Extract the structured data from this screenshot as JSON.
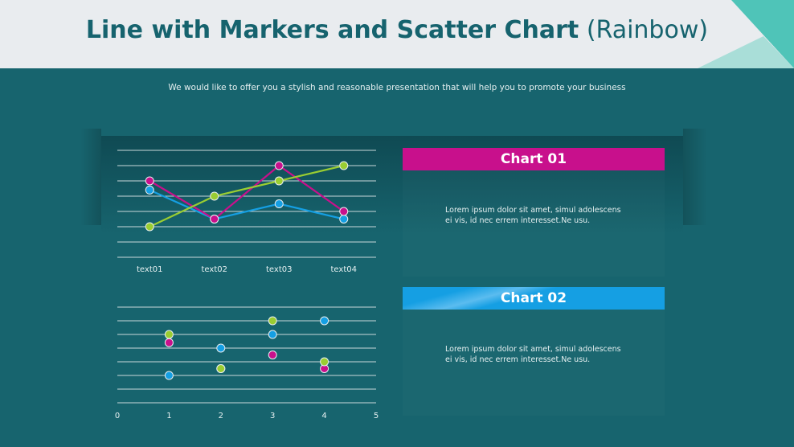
{
  "header": {
    "title_bold": "Line with Markers and Scatter Chart",
    "title_light": "(Rainbow)"
  },
  "subtitle": "We would like to offer you a stylish and reasonable presentation that will help you to promote your business",
  "colors": {
    "accent_teal": "#4fc4b8",
    "light_teal": "#a9ded8",
    "magenta": "#c8108c",
    "blue": "#159fe3",
    "green": "#9acd32",
    "background": "#17646e"
  },
  "cards": [
    {
      "title": "Chart 01",
      "text": "Lorem ipsum dolor sit amet, simul adolescens ei vis, id nec errem interesset.Ne usu.",
      "color": "#c8108c"
    },
    {
      "title": "Chart 02",
      "text": "Lorem ipsum dolor sit amet, simul adolescens ei vis, id nec errem interesset.Ne usu.",
      "color": "#159fe3"
    }
  ],
  "chart_data": [
    {
      "type": "line",
      "categories": [
        "text01",
        "text02",
        "text03",
        "text04"
      ],
      "ylim": [
        0,
        7
      ],
      "grid": true,
      "series": [
        {
          "color": "#159fe3",
          "values": [
            4.4,
            2.5,
            3.5,
            2.5
          ]
        },
        {
          "color": "#c8108c",
          "values": [
            5,
            2.5,
            6,
            3
          ]
        },
        {
          "color": "#9acd32",
          "values": [
            2,
            4,
            5,
            6
          ]
        }
      ]
    },
    {
      "type": "scatter",
      "xlim": [
        0,
        5
      ],
      "ylim": [
        0,
        7
      ],
      "xticks": [
        "0",
        "1",
        "2",
        "3",
        "4",
        "5"
      ],
      "grid": true,
      "series": [
        {
          "color": "#159fe3",
          "points": [
            [
              1,
              2
            ],
            [
              2,
              4
            ],
            [
              3,
              5
            ],
            [
              4,
              6
            ]
          ]
        },
        {
          "color": "#c8108c",
          "points": [
            [
              1,
              4.4
            ],
            [
              2,
              2.5
            ],
            [
              3,
              3.5
            ],
            [
              4,
              2.5
            ]
          ]
        },
        {
          "color": "#9acd32",
          "points": [
            [
              1,
              5
            ],
            [
              2,
              2.5
            ],
            [
              3,
              6
            ],
            [
              4,
              3
            ]
          ]
        }
      ]
    }
  ]
}
